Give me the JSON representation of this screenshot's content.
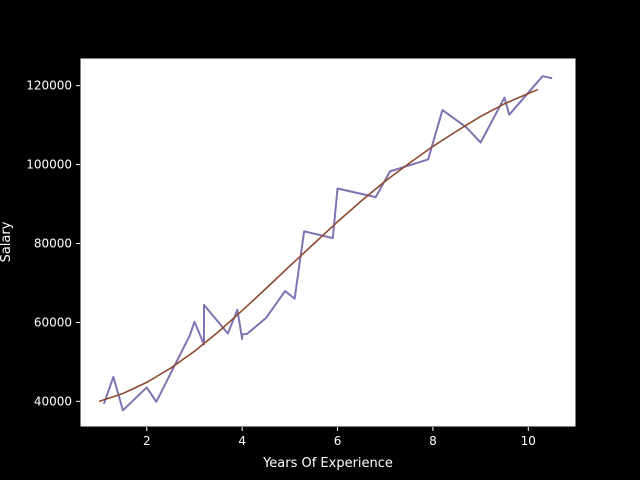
{
  "chart_data": {
    "type": "line",
    "title": "",
    "xlabel": "Years Of Experience",
    "ylabel": "Salary",
    "xlim": [
      0.6,
      11.0
    ],
    "ylim": [
      33500,
      127000
    ],
    "xticks": [
      2,
      4,
      6,
      8,
      10
    ],
    "yticks": [
      40000,
      60000,
      80000,
      100000,
      120000
    ],
    "grid": false,
    "legend": "none",
    "colors": {
      "background": "#000000",
      "plot_area": "#ffffff",
      "actual_line": "#8172b2",
      "fit_line": "#8c4a2f"
    },
    "series": [
      {
        "x": [
          1.1,
          1.3,
          1.5,
          2.0,
          2.2,
          2.9,
          3.0,
          3.2,
          3.2,
          3.7,
          3.9,
          4.0,
          4.0,
          4.1,
          4.5,
          4.9,
          5.1,
          5.3,
          5.9,
          6.0,
          6.8,
          7.1,
          7.9,
          8.2,
          8.7,
          9.0,
          9.5,
          9.6,
          10.3,
          10.5
        ],
        "y": [
          39343,
          46205,
          37731,
          43525,
          39891,
          56642,
          60150,
          54445,
          64445,
          57189,
          63218,
          55794,
          56957,
          57081,
          61111,
          67938,
          66029,
          83088,
          81363,
          93940,
          91738,
          98273,
          101302,
          113812,
          109431,
          105582,
          116969,
          112635,
          122391,
          121872
        ]
      },
      {
        "x": [
          1.0,
          1.5,
          2.0,
          2.5,
          3.0,
          3.5,
          4.0,
          4.5,
          5.0,
          5.5,
          6.0,
          6.5,
          7.0,
          7.5,
          8.0,
          8.5,
          9.0,
          9.5,
          10.0,
          10.2
        ],
        "y": [
          40000,
          42000,
          44800,
          48400,
          52700,
          57600,
          63000,
          68600,
          74300,
          79900,
          85500,
          90800,
          95800,
          100300,
          104600,
          108500,
          112200,
          115400,
          118000,
          119000
        ]
      }
    ]
  }
}
